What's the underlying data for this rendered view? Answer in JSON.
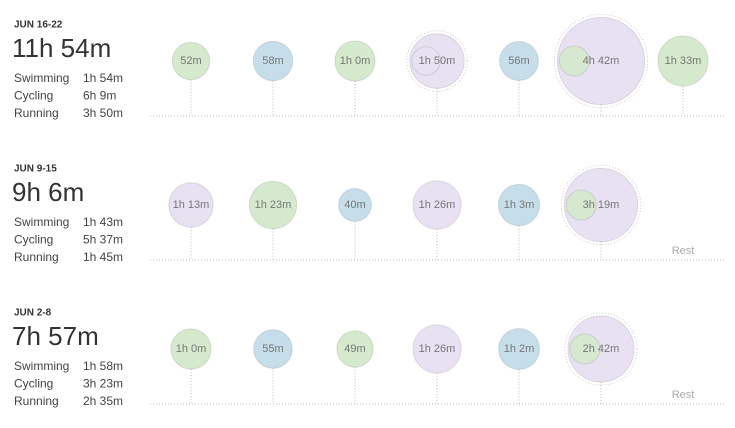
{
  "weeks": [
    {
      "label": "JUN 16-22",
      "total": "11h 54m",
      "breakdown": [
        [
          "Swimming",
          "1h 54m"
        ],
        [
          "Cycling",
          "6h 9m"
        ],
        [
          "Running",
          "3h 50m"
        ]
      ],
      "days": [
        {
          "text": "52m",
          "colors": [
            "#d5e9cd"
          ]
        },
        {
          "text": "58m",
          "colors": [
            "#c6dee9"
          ]
        },
        {
          "text": "1h 0m",
          "colors": [
            "#d5e9cd"
          ]
        },
        {
          "text": "1h 50m",
          "colors": [
            "#e7e1f2",
            "#e7e1f2"
          ]
        },
        {
          "text": "56m",
          "colors": [
            "#c6dee9"
          ]
        },
        {
          "text": "4h 42m",
          "colors": [
            "#e7e1f2",
            "#d5e9cd"
          ]
        },
        {
          "text": "1h 33m",
          "colors": [
            "#d5e9cd"
          ]
        }
      ]
    },
    {
      "label": "JUN 9-15",
      "total": "9h 6m",
      "breakdown": [
        [
          "Swimming",
          "1h 43m"
        ],
        [
          "Cycling",
          "5h 37m"
        ],
        [
          "Running",
          "1h 45m"
        ]
      ],
      "days": [
        {
          "text": "1h 13m",
          "colors": [
            "#e7e1f2"
          ]
        },
        {
          "text": "1h 23m",
          "colors": [
            "#d5e9cd"
          ]
        },
        {
          "text": "40m",
          "colors": [
            "#c6dee9"
          ]
        },
        {
          "text": "1h 26m",
          "colors": [
            "#e7e1f2"
          ]
        },
        {
          "text": "1h 3m",
          "colors": [
            "#c6dee9"
          ]
        },
        {
          "text": "3h 19m",
          "colors": [
            "#e7e1f2",
            "#d5e9cd"
          ]
        },
        {
          "text": "Rest",
          "colors": []
        }
      ]
    },
    {
      "label": "JUN 2-8",
      "total": "7h 57m",
      "breakdown": [
        [
          "Swimming",
          "1h 58m"
        ],
        [
          "Cycling",
          "3h 23m"
        ],
        [
          "Running",
          "2h 35m"
        ]
      ],
      "days": [
        {
          "text": "1h 0m",
          "colors": [
            "#d5e9cd"
          ]
        },
        {
          "text": "55m",
          "colors": [
            "#c6dee9"
          ]
        },
        {
          "text": "49m",
          "colors": [
            "#d5e9cd"
          ]
        },
        {
          "text": "1h 26m",
          "colors": [
            "#e7e1f2"
          ]
        },
        {
          "text": "1h 2m",
          "colors": [
            "#c6dee9"
          ]
        },
        {
          "text": "2h 42m",
          "colors": [
            "#e7e1f2",
            "#d5e9cd"
          ]
        },
        {
          "text": "Rest",
          "colors": []
        }
      ]
    }
  ]
}
